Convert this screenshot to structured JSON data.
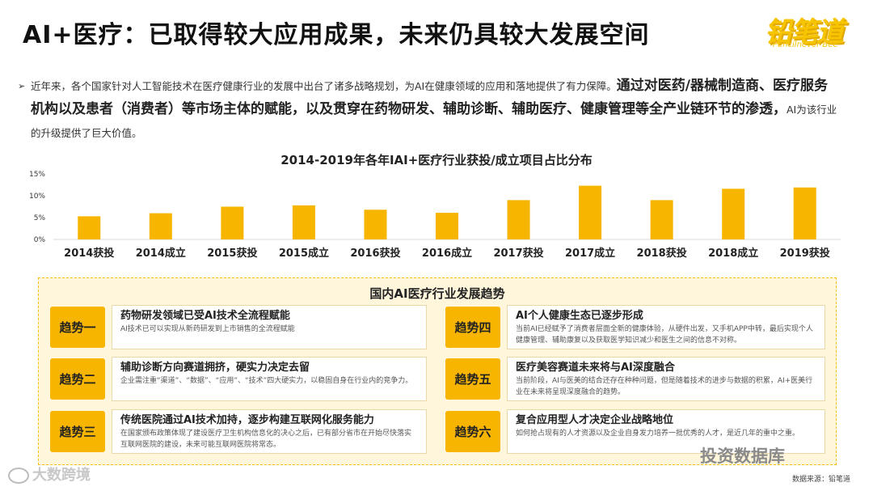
{
  "title": "AI+医疗：已取得较大应用成果，未来仍具较大发展空间",
  "logo": {
    "cn": "铅笔道",
    "en": "Pencilnever Bee"
  },
  "intro": {
    "arrow": "➢",
    "part1": "近年来，各个国家针对人工智能技术在医疗健康行业的发展中出台了诸多战略规划，为AI在健康领域的应用和落地提供了有力保障。",
    "bold": "通过对医药/器械制造商、医疗服务机构以及患者（消费者）等市场主体的赋能，以及贯穿在药物研发、辅助诊断、辅助医疗、健康管理等全产业链环节的渗透，",
    "part2": "AI为该行业的升级提供了巨大价值。"
  },
  "colors": {
    "bar": "#f7b500",
    "axis": "#d9d9d9",
    "tag": "#f7b500"
  },
  "chart_data": {
    "type": "bar",
    "title": "2014-2019年各年IAI+医疗行业获投/成立项目占比分布",
    "categories": [
      "2014获投",
      "2014成立",
      "2015获投",
      "2015成立",
      "2016获投",
      "2016成立",
      "2017获投",
      "2017成立",
      "2018获投",
      "2018成立",
      "2019获投"
    ],
    "values": [
      5.3,
      6.0,
      7.5,
      7.8,
      6.8,
      6.1,
      9.0,
      12.3,
      9.0,
      11.6,
      11.9
    ],
    "yticks": [
      "0%",
      "5%",
      "10%",
      "15%"
    ],
    "ylim": [
      0,
      15
    ],
    "unit": "%",
    "grid": false,
    "xlabel": "",
    "ylabel": ""
  },
  "panel": {
    "title": "国内AI医疗行业发展趋势",
    "trends": [
      {
        "tag": "趋势一",
        "heading": "药物研发领域已受AI技术全流程赋能",
        "desc": "AI技术已可以实现从新药研发到上市销售的全流程赋能"
      },
      {
        "tag": "趋势二",
        "heading": "辅助诊断方向赛道拥挤，硬实力决定去留",
        "desc": "企业需注重“渠道”、“数据”、“应用”、“技术”四大硬实力，以稳固自身在行业内的竞争力。"
      },
      {
        "tag": "趋势三",
        "heading": "传统医院通过AI技术加持，逐步构建互联网化服务能力",
        "desc": "在国家颁布政策体现了建设医疗卫生机构信息化的决心之后，已有部分省市在开始尽快落实互联网医院的建设，未来可能互联网医院将常态。"
      },
      {
        "tag": "趋势四",
        "heading": "AI个人健康生态已逐步形成",
        "desc": "当前AI已经赋予了消费者层面全新的健康体验，从硬件出发，又手机APP中转，最后实现个人健康管理、辅助康复以及获取医学知识减少和医生之间的信息不对称。"
      },
      {
        "tag": "趋势五",
        "heading": "医疗美容赛道未来将与AI深度融合",
        "desc": "当前阶段，AI与医美的结合还存在种种问题，但是随着技术的进步与数据的积累，AI+医美行业在未来将呈现深度融合的趋势。"
      },
      {
        "tag": "趋势六",
        "heading": "复合应用型人才决定企业战略地位",
        "desc": "如何抢占现有的人才资源以及企业自身发力培养一批优秀的人才，是近几年的重中之重。"
      }
    ]
  },
  "source": "数据来源：铅笔道",
  "watermarks": {
    "left": "大数跨境",
    "right": "投资数据库"
  }
}
